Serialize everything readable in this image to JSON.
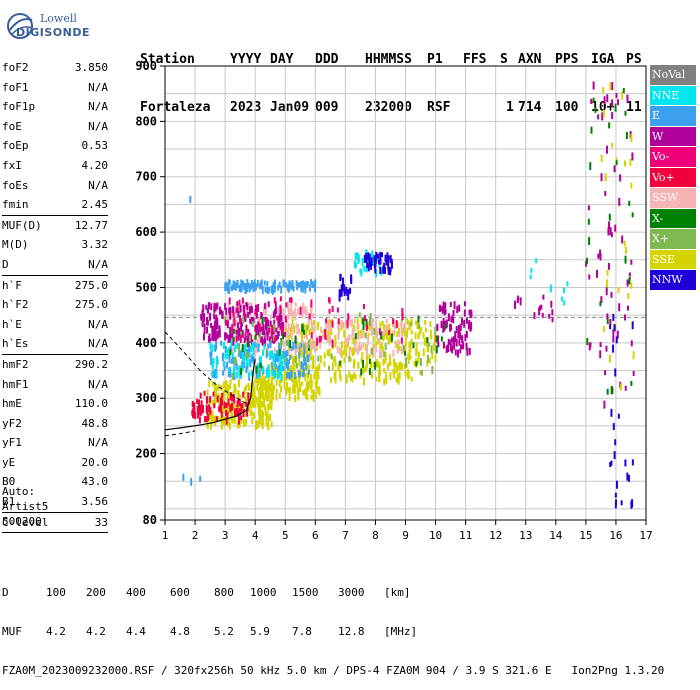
{
  "logo": {
    "line1": "Lowell",
    "line2": "DIGISONDE"
  },
  "header": {
    "line1": [
      "Station",
      "YYYY",
      "DAY",
      "DDD",
      "HHMMSS",
      "P1",
      "FFS",
      "S",
      "AXN",
      "PPS",
      "IGA",
      "PS"
    ],
    "line2": [
      "Fortaleza",
      "2023",
      "Jan09",
      "009",
      "232000",
      "RSF",
      "1",
      "714",
      "100",
      "10+",
      "11"
    ]
  },
  "params": [
    {
      "name": "foF2",
      "value": "3.850"
    },
    {
      "name": "foF1",
      "value": "N/A"
    },
    {
      "name": "foF1p",
      "value": "N/A"
    },
    {
      "name": "foE",
      "value": "N/A"
    },
    {
      "name": "foEp",
      "value": "0.53"
    },
    {
      "name": "fxI",
      "value": "4.20"
    },
    {
      "name": "foEs",
      "value": "N/A"
    },
    {
      "name": "fmin",
      "value": "2.45"
    },
    {
      "sep": true
    },
    {
      "name": "MUF(D)",
      "value": "12.77"
    },
    {
      "name": "M(D)",
      "value": "3.32"
    },
    {
      "name": "D",
      "value": "N/A"
    },
    {
      "sep": true
    },
    {
      "name": "h`F",
      "value": "275.0"
    },
    {
      "name": "h`F2",
      "value": "275.0"
    },
    {
      "name": "h`E",
      "value": "N/A"
    },
    {
      "name": "h`Es",
      "value": "N/A"
    },
    {
      "sep": true
    },
    {
      "name": "hmF2",
      "value": "290.2"
    },
    {
      "name": "hmF1",
      "value": "N/A"
    },
    {
      "name": "hmE",
      "value": "110.0"
    },
    {
      "name": "yF2",
      "value": "48.8"
    },
    {
      "name": "yF1",
      "value": "N/A"
    },
    {
      "name": "yE",
      "value": "20.0"
    },
    {
      "name": "B0",
      "value": "43.0"
    },
    {
      "name": "B1",
      "value": "3.56"
    },
    {
      "sep": true
    },
    {
      "name": "C-level",
      "value": "33"
    },
    {
      "sep": true
    }
  ],
  "auto": {
    "label": "Auto:",
    "software": "Artist5",
    "version": "500200"
  },
  "legend": [
    {
      "label": "NoVal",
      "color": "#808080"
    },
    {
      "label": "NNE",
      "color": "#00e5ee"
    },
    {
      "label": "E",
      "color": "#3ca0f0"
    },
    {
      "label": "W",
      "color": "#b0009a"
    },
    {
      "label": "Vo-",
      "color": "#f00078"
    },
    {
      "label": "Vo+",
      "color": "#f0003c"
    },
    {
      "label": "SSW",
      "color": "#f4b4b4"
    },
    {
      "label": "X-",
      "color": "#008000"
    },
    {
      "label": "X+",
      "color": "#80b850"
    },
    {
      "label": "SSE",
      "color": "#d4d400"
    },
    {
      "label": "NNW",
      "color": "#2000d8"
    }
  ],
  "chart_data": {
    "type": "scatter",
    "xlabel": "",
    "ylabel": "",
    "xlim": [
      1,
      17
    ],
    "ylim": [
      80,
      900
    ],
    "x_ticks": [
      1,
      2,
      3,
      4,
      5,
      6,
      7,
      8,
      9,
      10,
      11,
      12,
      13,
      14,
      15,
      16,
      17
    ],
    "y_ticks": [
      80,
      200,
      300,
      400,
      500,
      600,
      700,
      800,
      900
    ],
    "grid": true,
    "dashed_hlines": [
      446
    ],
    "profile_curve": [
      [
        1.0,
        243
      ],
      [
        1.6,
        247
      ],
      [
        2.2,
        252
      ],
      [
        2.6,
        256
      ],
      [
        3.0,
        262
      ],
      [
        3.4,
        268
      ],
      [
        3.7,
        278
      ],
      [
        3.85,
        300
      ],
      [
        3.9,
        330
      ],
      [
        3.95,
        355
      ],
      [
        4.0,
        370
      ]
    ],
    "extrapolated_curve_lower": [
      [
        1.0,
        232
      ],
      [
        1.5,
        236
      ],
      [
        2.0,
        241
      ]
    ],
    "extrapolated_curve_upper": [
      [
        1.0,
        420
      ],
      [
        1.6,
        385
      ],
      [
        2.2,
        348
      ],
      [
        2.8,
        320
      ],
      [
        3.4,
        300
      ],
      [
        3.7,
        290
      ]
    ],
    "echo_clusters": [
      {
        "series": "SSE",
        "x": [
          2.4,
          4.6
        ],
        "y": [
          250,
          330
        ],
        "n": 240
      },
      {
        "series": "SSE",
        "x": [
          4.0,
          6.2
        ],
        "y": [
          300,
          360
        ],
        "n": 160
      },
      {
        "series": "SSE",
        "x": [
          5.0,
          10.0
        ],
        "y": [
          360,
          440
        ],
        "n": 260
      },
      {
        "series": "SSE",
        "x": [
          6.5,
          9.5
        ],
        "y": [
          330,
          360
        ],
        "n": 60
      },
      {
        "series": "SSW",
        "x": [
          3.0,
          6.0
        ],
        "y": [
          380,
          470
        ],
        "n": 160
      },
      {
        "series": "SSW",
        "x": [
          6.0,
          9.0
        ],
        "y": [
          380,
          440
        ],
        "n": 90
      },
      {
        "series": "W",
        "x": [
          2.2,
          5.0
        ],
        "y": [
          400,
          470
        ],
        "n": 180
      },
      {
        "series": "W",
        "x": [
          10.0,
          11.2
        ],
        "y": [
          380,
          470
        ],
        "n": 80
      },
      {
        "series": "E",
        "x": [
          2.5,
          5.8
        ],
        "y": [
          340,
          400
        ],
        "n": 140
      },
      {
        "series": "E",
        "x": [
          3.0,
          6.0
        ],
        "y": [
          495,
          510
        ],
        "n": 110
      },
      {
        "series": "NNE",
        "x": [
          2.5,
          5.0
        ],
        "y": [
          340,
          400
        ],
        "n": 80
      },
      {
        "series": "NNE",
        "x": [
          7.3,
          8.2
        ],
        "y": [
          525,
          565
        ],
        "n": 30
      },
      {
        "series": "NNW",
        "x": [
          6.8,
          7.2
        ],
        "y": [
          480,
          520
        ],
        "n": 20
      },
      {
        "series": "NNW",
        "x": [
          7.6,
          8.6
        ],
        "y": [
          530,
          560
        ],
        "n": 40
      },
      {
        "series": "Vo+",
        "x": [
          1.9,
          3.8
        ],
        "y": [
          260,
          310
        ],
        "n": 80
      },
      {
        "series": "X-",
        "x": [
          3.0,
          10.5
        ],
        "y": [
          340,
          450
        ],
        "n": 40
      },
      {
        "series": "X+",
        "x": [
          3.0,
          10.0
        ],
        "y": [
          340,
          450
        ],
        "n": 50
      },
      {
        "series": "Vo-",
        "x": [
          3.0,
          9.0
        ],
        "y": [
          400,
          480
        ],
        "n": 60
      },
      {
        "series": "W",
        "x": [
          15.0,
          16.6
        ],
        "y": [
          280,
          880
        ],
        "n": 60
      },
      {
        "series": "SSE",
        "x": [
          15.5,
          16.6
        ],
        "y": [
          300,
          880
        ],
        "n": 25
      },
      {
        "series": "X-",
        "x": [
          15.0,
          16.6
        ],
        "y": [
          300,
          860
        ],
        "n": 25
      },
      {
        "series": "NNW",
        "x": [
          15.8,
          16.6
        ],
        "y": [
          100,
          450
        ],
        "n": 25
      },
      {
        "series": "E",
        "x": [
          1.5,
          2.2
        ],
        "y": [
          150,
          160
        ],
        "n": 3
      },
      {
        "series": "E",
        "x": [
          1.8,
          1.9
        ],
        "y": [
          660,
          665
        ],
        "n": 1
      },
      {
        "series": "W",
        "x": [
          12.3,
          14.0
        ],
        "y": [
          440,
          500
        ],
        "n": 15
      },
      {
        "series": "NNE",
        "x": [
          12.5,
          14.5
        ],
        "y": [
          470,
          550
        ],
        "n": 8
      }
    ]
  },
  "footer": {
    "row1_label": "D",
    "row1_values": [
      "100",
      "200",
      "400",
      "600",
      "800",
      "1000",
      "1500",
      "3000",
      "[km]"
    ],
    "row2_label": "MUF",
    "row2_values": [
      "4.2",
      "4.2",
      "4.4",
      "4.8",
      "5.2",
      "5.9",
      "7.8",
      "12.8",
      "[MHz]"
    ],
    "row3": "FZA0M_2023009232000.RSF / 320fx256h 50 kHz 5.0 km / DPS-4 FZA0M 904 / 3.9 S 321.6 E   Ion2Png 1.3.20"
  }
}
